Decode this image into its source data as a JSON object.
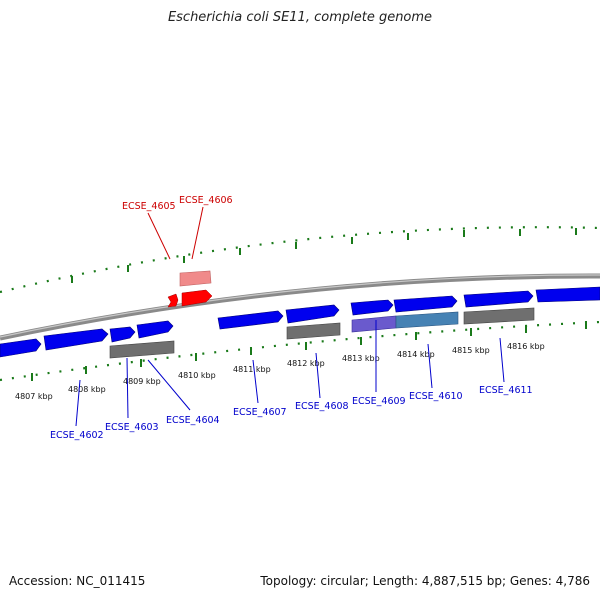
{
  "title": "Escherichia coli SE11, complete genome",
  "footer": {
    "accession": "Accession: NC_011415",
    "summary": "Topology: circular; Length: 4,887,515 bp; Genes: 4,786"
  },
  "colors": {
    "forward_gene": "#0000ee",
    "reverse_gene": "#ff0000",
    "reverse_gene_light": "#f08a8a",
    "rna_gray": "#6f6f6f",
    "backbone": "#8a8a8a",
    "tick_green": "#1a7a1a",
    "label_blue": "#0000cc",
    "label_red": "#cc0000",
    "highlight_purple": "#6a5acd",
    "highlight_teal": "#4682b4"
  },
  "scale_labels": [
    "4807 kbp",
    "4808 kbp",
    "4809 kbp",
    "4810 kbp",
    "4811 kbp",
    "4812 kbp",
    "4813 kbp",
    "4814 kbp",
    "4815 kbp",
    "4816 kbp"
  ],
  "gene_labels_bottom": [
    "ECSE_4602",
    "ECSE_4603",
    "ECSE_4604",
    "ECSE_4607",
    "ECSE_4608",
    "ECSE_4609",
    "ECSE_4610",
    "ECSE_4611"
  ],
  "gene_labels_top": [
    "ECSE_4605",
    "ECSE_4606"
  ]
}
